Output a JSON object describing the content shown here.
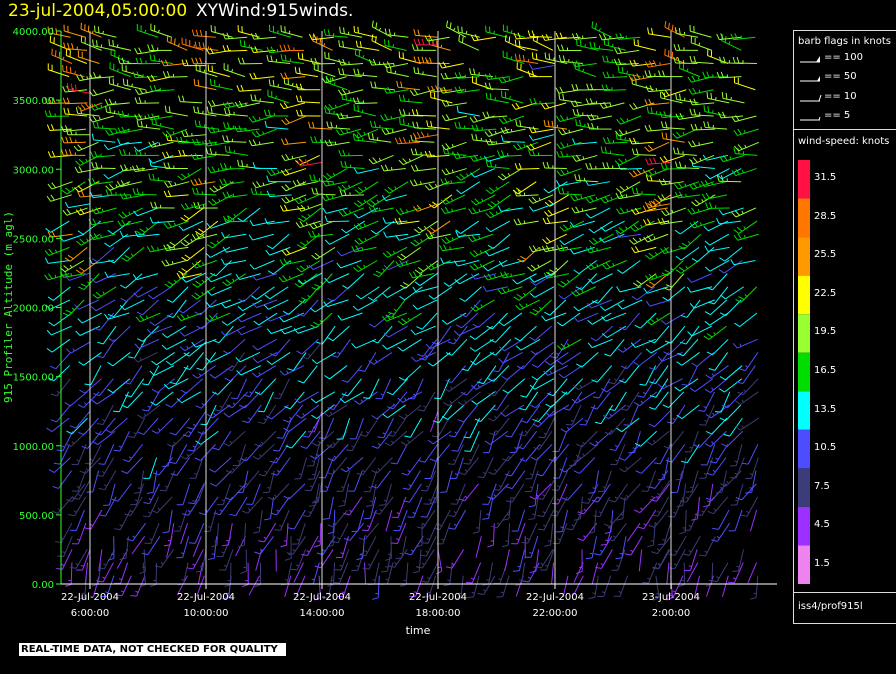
{
  "header": {
    "date": "23-jul-2004,05:00:00",
    "product": "XYWind:915winds."
  },
  "colors": {
    "ylabel_color": "#33ff33",
    "axis_color": "#33ff33",
    "grid_color": "#dddddd",
    "speed_bins": [
      "#ee82ee",
      "#9b30ff",
      "#3c3c78",
      "#4d4dff",
      "#00ffff",
      "#00dd00",
      "#99ff33",
      "#ffff00",
      "#ff9900",
      "#ff7700",
      "#ff1144"
    ]
  },
  "chart_data": {
    "type": "wind-barb",
    "title": "",
    "xlabel": "time",
    "ylabel": "915 Profiler Altitude (m agl)",
    "ylim": [
      0,
      4000
    ],
    "xlim": [
      "2004-07-22T05:00:00",
      "2004-07-23T05:00:00"
    ],
    "yticks": [
      "0.00",
      "500.00",
      "1000.00",
      "1500.00",
      "2000.00",
      "2500.00",
      "3000.00",
      "3500.00",
      "4000.00"
    ],
    "xticks": [
      {
        "line1": "22-Jul-2004",
        "line2": "6:00:00"
      },
      {
        "line1": "22-Jul-2004",
        "line2": "10:00:00"
      },
      {
        "line1": "22-Jul-2004",
        "line2": "14:00:00"
      },
      {
        "line1": "22-Jul-2004",
        "line2": "18:00:00"
      },
      {
        "line1": "22-Jul-2004",
        "line2": "22:00:00"
      },
      {
        "line1": "23-Jul-2004",
        "line2": "2:00:00"
      }
    ],
    "vertical_grid": "on",
    "speed_unit": "knots",
    "series": [
      {
        "hour": 6,
        "alt": [
          250,
          750,
          1250,
          1750,
          2250,
          2750,
          3250,
          3550
        ],
        "speed": [
          5,
          8,
          10,
          9,
          11,
          12,
          18,
          31
        ],
        "dir": [
          200,
          210,
          220,
          240,
          250,
          260,
          270,
          280
        ]
      },
      {
        "hour": 10,
        "alt": [
          250,
          750,
          1250,
          1750,
          2250,
          2750,
          3250,
          3750
        ],
        "speed": [
          6,
          7,
          9,
          12,
          14,
          16,
          19,
          21
        ],
        "dir": [
          190,
          200,
          215,
          230,
          245,
          255,
          265,
          270
        ]
      },
      {
        "hour": 14,
        "alt": [
          250,
          750,
          1250,
          1750,
          2250,
          2750,
          3050
        ],
        "speed": [
          4,
          6,
          5,
          8,
          12,
          18,
          31
        ],
        "dir": [
          180,
          190,
          200,
          220,
          240,
          250,
          260
        ]
      },
      {
        "hour": 18,
        "alt": [
          250,
          750,
          1250,
          1750,
          2250,
          2750,
          3250,
          3900
        ],
        "speed": [
          5,
          6,
          4,
          9,
          12,
          24,
          27,
          31
        ],
        "dir": [
          170,
          185,
          200,
          215,
          235,
          250,
          260,
          270
        ]
      },
      {
        "hour": 22,
        "alt": [
          250,
          750,
          1250,
          1750,
          2250,
          2750,
          3250,
          3750
        ],
        "speed": [
          6,
          8,
          9,
          11,
          13,
          14,
          12,
          10
        ],
        "dir": [
          200,
          210,
          225,
          235,
          245,
          250,
          255,
          260
        ]
      },
      {
        "hour": 2,
        "alt": [
          250,
          750,
          1250,
          1750,
          2250,
          2750,
          3050
        ],
        "speed": [
          7,
          8,
          10,
          13,
          17,
          25,
          31
        ],
        "dir": [
          210,
          215,
          225,
          240,
          250,
          260,
          265
        ]
      }
    ]
  },
  "barb_legend": {
    "title": "barb flags in knots",
    "items": [
      "== 100",
      "== 50",
      "== 10",
      "== 5"
    ]
  },
  "speed_legend": {
    "title": "wind-speed: knots",
    "labels": [
      "31.5",
      "28.5",
      "25.5",
      "22.5",
      "19.5",
      "16.5",
      "13.5",
      "10.5",
      "7.5",
      "4.5",
      "1.5"
    ]
  },
  "site": "iss4/prof915l",
  "footer": "REAL-TIME DATA, NOT CHECKED FOR QUALITY"
}
